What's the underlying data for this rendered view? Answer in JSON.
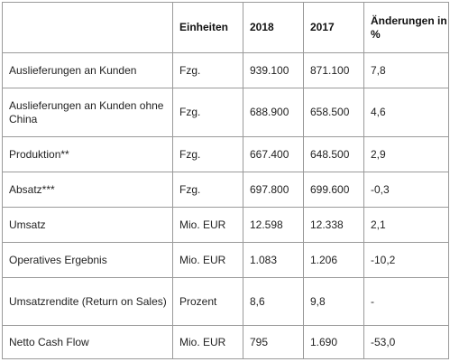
{
  "table": {
    "headers": [
      "",
      "Einheiten",
      "2018",
      "2017",
      "Änderungen in %"
    ],
    "rows": [
      {
        "label": "Auslieferungen an Kunden",
        "unit": "Fzg.",
        "y2018": "939.100",
        "y2017": "871.100",
        "change": "7,8"
      },
      {
        "label": "Auslieferungen an Kunden ohne China",
        "unit": "Fzg.",
        "y2018": "688.900",
        "y2017": "658.500",
        "change": "4,6"
      },
      {
        "label": "Produktion**",
        "unit": "Fzg.",
        "y2018": "667.400",
        "y2017": "648.500",
        "change": "2,9"
      },
      {
        "label": "Absatz***",
        "unit": "Fzg.",
        "y2018": "697.800",
        "y2017": "699.600",
        "change": "-0,3"
      },
      {
        "label": "Umsatz",
        "unit": "Mio. EUR",
        "y2018": "12.598",
        "y2017": "12.338",
        "change": "2,1"
      },
      {
        "label": "Operatives Ergebnis",
        "unit": "Mio. EUR",
        "y2018": "1.083",
        "y2017": "1.206",
        "change": "-10,2"
      },
      {
        "label": "Umsatzrendite (Return on Sales)",
        "unit": "Prozent",
        "y2018": "8,6",
        "y2017": "9,8",
        "change": "-"
      },
      {
        "label": "Netto Cash Flow",
        "unit": "Mio. EUR",
        "y2018": "795",
        "y2017": "1.690",
        "change": "-53,0"
      }
    ]
  }
}
